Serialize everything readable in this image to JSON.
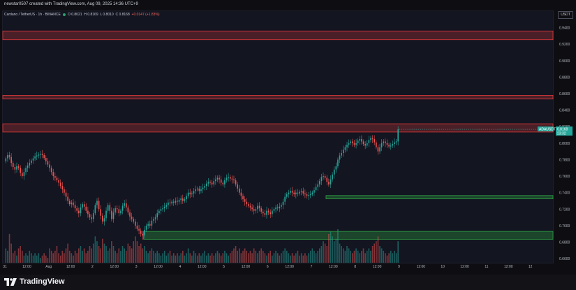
{
  "header": {
    "attribution": "newstar0507 created with TradingView.com, Aug 09, 2025 14:36 UTC+9"
  },
  "symbol_info": {
    "name": "Cardano / TetherUS · 1h · BINANCE",
    "open": "O 0.8021",
    "high": "H 0.8169",
    "low": "L 0.8010",
    "close": "C 0.8168",
    "change": "+0.0147 (+1.83%)"
  },
  "price_axis": {
    "currency": "USDT",
    "ticks": [
      "0.9400",
      "0.9200",
      "0.9000",
      "0.8800",
      "0.8600",
      "0.8400",
      "0.8200",
      "0.8000",
      "0.7800",
      "0.7600",
      "0.7400",
      "0.7200",
      "0.7000",
      "0.6800",
      "0.6600"
    ]
  },
  "time_axis": {
    "labels": [
      "31",
      "12:00",
      "Aug",
      "12:00",
      "2",
      "12:00",
      "3",
      "12:00",
      "4",
      "12:00",
      "5",
      "12:00",
      "6",
      "12:00",
      "7",
      "12:00",
      "8",
      "12:00",
      "9",
      "12:00",
      "10",
      "12:00",
      "11",
      "12:00",
      "12"
    ]
  },
  "current_price": {
    "symbol": "ADAUSDT",
    "price": "0.8168",
    "countdown": "23:32",
    "color": "#26a69a"
  },
  "zones": {
    "resistance_color": "#e03a3a",
    "support_color": "#2ea043",
    "resistance": [
      {
        "from": 0.9255,
        "to": 0.936
      },
      {
        "from": 0.8535,
        "to": 0.858
      },
      {
        "from": 0.8135,
        "to": 0.8235
      }
    ],
    "support": [
      {
        "from": 0.7325,
        "to": 0.7365
      },
      {
        "from": 0.6835,
        "to": 0.693
      }
    ]
  },
  "colors": {
    "up": "#26a69a",
    "down": "#ef5350",
    "background": "#131521"
  },
  "footer": {
    "brand": "TradingView"
  },
  "chart_data": {
    "type": "candlestick",
    "ylim": [
      0.655,
      0.96
    ],
    "x_range_hours": [
      0,
      300
    ],
    "closes": [
      0.7815,
      0.7855,
      0.783,
      0.776,
      0.771,
      0.768,
      0.772,
      0.77,
      0.764,
      0.76,
      0.765,
      0.77,
      0.773,
      0.776,
      0.779,
      0.7815,
      0.784,
      0.785,
      0.786,
      0.787,
      0.7855,
      0.782,
      0.778,
      0.774,
      0.77,
      0.765,
      0.76,
      0.758,
      0.755,
      0.752,
      0.748,
      0.744,
      0.74,
      0.735,
      0.73,
      0.726,
      0.728,
      0.725,
      0.721,
      0.718,
      0.715,
      0.722,
      0.726,
      0.723,
      0.718,
      0.714,
      0.71,
      0.708,
      0.715,
      0.725,
      0.73,
      0.72,
      0.712,
      0.705,
      0.709,
      0.718,
      0.725,
      0.718,
      0.708,
      0.716,
      0.721,
      0.72,
      0.715,
      0.718,
      0.724,
      0.727,
      0.722,
      0.716,
      0.711,
      0.708,
      0.705,
      0.7,
      0.696,
      0.694,
      0.69,
      0.688,
      0.695,
      0.7,
      0.702,
      0.7,
      0.706,
      0.708,
      0.71,
      0.715,
      0.718,
      0.72,
      0.721,
      0.723,
      0.725,
      0.728,
      0.727,
      0.729,
      0.728,
      0.73,
      0.729,
      0.731,
      0.733,
      0.73,
      0.732,
      0.736,
      0.74,
      0.738,
      0.739,
      0.742,
      0.744,
      0.745,
      0.742,
      0.744,
      0.746,
      0.748,
      0.751,
      0.753,
      0.752,
      0.75,
      0.754,
      0.756,
      0.758,
      0.756,
      0.752,
      0.75,
      0.755,
      0.758,
      0.759,
      0.757,
      0.756,
      0.755,
      0.75,
      0.745,
      0.74,
      0.736,
      0.732,
      0.729,
      0.726,
      0.724,
      0.722,
      0.72,
      0.718,
      0.72,
      0.724,
      0.721,
      0.717,
      0.715,
      0.713,
      0.718,
      0.716,
      0.714,
      0.718,
      0.72,
      0.722,
      0.721,
      0.723,
      0.725,
      0.729,
      0.735,
      0.738,
      0.74,
      0.742,
      0.74,
      0.738,
      0.74,
      0.739,
      0.741,
      0.742,
      0.739,
      0.738,
      0.736,
      0.737,
      0.738,
      0.74,
      0.743,
      0.747,
      0.75,
      0.754,
      0.759,
      0.76,
      0.758,
      0.753,
      0.75,
      0.756,
      0.762,
      0.768,
      0.772,
      0.78,
      0.785,
      0.788,
      0.792,
      0.795,
      0.798,
      0.8,
      0.802,
      0.8,
      0.798,
      0.8,
      0.803,
      0.805,
      0.802,
      0.799,
      0.797,
      0.8,
      0.804,
      0.806,
      0.805,
      0.801,
      0.795,
      0.79,
      0.795,
      0.8,
      0.802,
      0.8,
      0.798,
      0.796,
      0.797,
      0.799,
      0.801,
      0.8021,
      0.8168
    ],
    "volumes": [
      0.6,
      0.5,
      1.2,
      0.8,
      0.4,
      0.5,
      0.3,
      0.6,
      0.7,
      0.5,
      0.3,
      0.4,
      0.3,
      0.5,
      0.4,
      0.3,
      0.4,
      0.3,
      0.4,
      0.2,
      0.3,
      0.4,
      0.3,
      0.2,
      0.6,
      0.5,
      0.4,
      0.5,
      0.7,
      0.4,
      0.3,
      0.5,
      0.4,
      0.6,
      0.8,
      0.5,
      0.4,
      0.3,
      0.5,
      0.4,
      0.6,
      0.7,
      0.5,
      0.6,
      0.4,
      0.5,
      0.7,
      0.6,
      0.8,
      1.1,
      0.9,
      0.7,
      0.6,
      1.0,
      0.8,
      0.7,
      0.5,
      0.6,
      0.9,
      0.7,
      0.5,
      0.4,
      0.6,
      0.5,
      0.7,
      0.6,
      0.5,
      0.8,
      0.7,
      0.6,
      0.9,
      1.1,
      0.9,
      0.7,
      0.8,
      0.6,
      0.7,
      0.5,
      0.4,
      0.5,
      0.6,
      0.5,
      0.4,
      0.5,
      0.4,
      0.3,
      0.4,
      0.5,
      0.3,
      0.4,
      0.5,
      0.3,
      0.4,
      0.3,
      0.4,
      0.3,
      0.4,
      0.5,
      0.3,
      0.4,
      0.6,
      0.4,
      0.3,
      0.5,
      0.4,
      0.3,
      0.4,
      0.3,
      0.4,
      0.5,
      0.3,
      0.4,
      0.3,
      0.4,
      0.3,
      0.4,
      0.5,
      0.4,
      0.3,
      0.4,
      0.5,
      0.4,
      0.3,
      0.4,
      0.5,
      0.6,
      0.7,
      0.5,
      0.6,
      0.4,
      0.5,
      0.6,
      0.5,
      0.4,
      0.5,
      0.4,
      0.6,
      0.5,
      0.4,
      0.5,
      0.6,
      0.5,
      0.4,
      0.3,
      0.4,
      0.5,
      0.3,
      0.4,
      0.5,
      0.4,
      0.3,
      0.4,
      0.5,
      0.6,
      0.5,
      0.4,
      0.3,
      0.4,
      0.3,
      0.4,
      0.5,
      0.3,
      0.4,
      0.3,
      0.4,
      0.3,
      0.4,
      0.5,
      0.6,
      0.5,
      0.4,
      0.5,
      0.6,
      0.7,
      0.9,
      0.8,
      0.7,
      1.2,
      1.3,
      1.1,
      0.9,
      1.0,
      1.4,
      0.8,
      0.7,
      0.6,
      0.5,
      0.7,
      0.6,
      0.5,
      0.4,
      0.5,
      0.6,
      0.5,
      0.4,
      0.5,
      0.6,
      0.4,
      0.5,
      0.6,
      0.5,
      0.7,
      0.8,
      0.9,
      1.1,
      0.7,
      0.6,
      0.5,
      0.4,
      0.3,
      0.4,
      0.5,
      0.4,
      0.5,
      0.4,
      0.9
    ]
  }
}
